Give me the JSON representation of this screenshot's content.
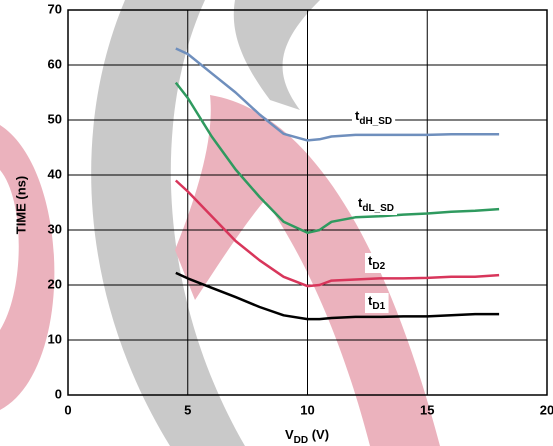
{
  "chart_data": {
    "type": "line",
    "x_label": "VDD (V)",
    "y_label": "TIME (ns)",
    "xlim": [
      0,
      20
    ],
    "xticks": [
      0,
      5,
      10,
      15,
      20
    ],
    "ylim": [
      0,
      70
    ],
    "yticks": [
      0,
      10,
      20,
      30,
      40,
      50,
      60,
      70
    ],
    "grid": true,
    "x": [
      4.5,
      5,
      6,
      7,
      8,
      9,
      10,
      10.5,
      11,
      12,
      13,
      14,
      15,
      16,
      17,
      18
    ],
    "series": [
      {
        "name": "tdH_SD",
        "color": "#6f8fbd",
        "values": [
          63,
          62,
          58.5,
          55,
          51,
          47.5,
          46.3,
          46.5,
          47,
          47.3,
          47.3,
          47.3,
          47.3,
          47.4,
          47.4,
          47.4
        ]
      },
      {
        "name": "tdL_SD",
        "color": "#2f9a5f",
        "values": [
          56.8,
          54,
          47,
          41,
          36,
          31.5,
          29.5,
          30,
          31.5,
          32.3,
          32.5,
          32.8,
          33,
          33.3,
          33.5,
          33.8
        ]
      },
      {
        "name": "tD2",
        "color": "#d8365b",
        "values": [
          39,
          37,
          32.5,
          28,
          24.5,
          21.5,
          19.8,
          20,
          20.8,
          21,
          21.2,
          21.2,
          21.3,
          21.5,
          21.5,
          21.8
        ]
      },
      {
        "name": "tD1",
        "color": "#000000",
        "values": [
          22.2,
          21.2,
          19.5,
          17.8,
          16,
          14.5,
          13.8,
          13.8,
          14,
          14.2,
          14.2,
          14.3,
          14.3,
          14.5,
          14.7,
          14.7
        ]
      }
    ]
  }
}
